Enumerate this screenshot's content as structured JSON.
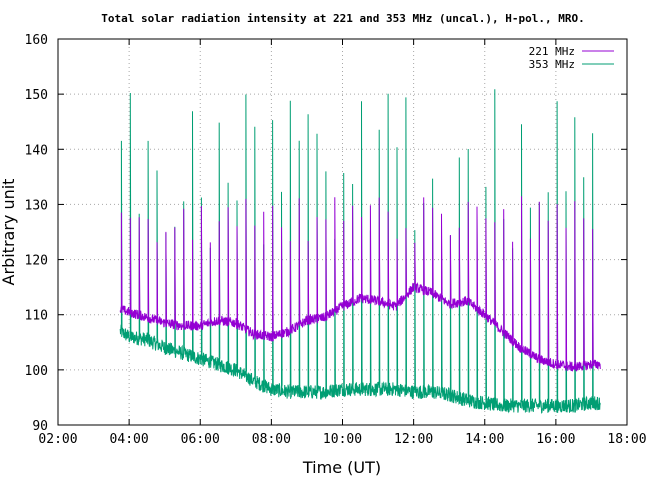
{
  "chart_data": {
    "type": "line",
    "title": "Total solar radiation intensity at 221 and 353 MHz (uncal.), H-pol., MRO.",
    "xlabel": "Time (UT)",
    "ylabel": "Arbitrary unit",
    "x_ticks": [
      "02:00",
      "04:00",
      "06:00",
      "08:00",
      "10:00",
      "12:00",
      "14:00",
      "16:00",
      "18:00"
    ],
    "y_ticks": [
      90,
      100,
      110,
      120,
      130,
      140,
      150,
      160
    ],
    "xlim": [
      "02:00",
      "18:00"
    ],
    "ylim": [
      90,
      160
    ],
    "grid": true,
    "legend_position": "top-right",
    "calibration_spikes": {
      "start": "03:47",
      "interval_minutes": 15,
      "count": 54
    },
    "series": [
      {
        "name": "221 MHz",
        "color": "#9400d3",
        "spike_peak_range": [
          123,
          131.5
        ],
        "x": [
          "03:45",
          "04:00",
          "04:30",
          "05:00",
          "05:30",
          "06:00",
          "06:30",
          "07:00",
          "07:30",
          "08:00",
          "08:30",
          "09:00",
          "09:30",
          "10:00",
          "10:30",
          "11:00",
          "11:30",
          "12:00",
          "12:30",
          "13:00",
          "13:30",
          "14:00",
          "14:30",
          "15:00",
          "15:30",
          "16:00",
          "16:30",
          "17:00",
          "17:15"
        ],
        "values": [
          111,
          110.5,
          109.5,
          108.5,
          108,
          108,
          109,
          108.5,
          106.5,
          106,
          107,
          109,
          109.5,
          111.5,
          113,
          112.5,
          111.5,
          115,
          114,
          112,
          112.5,
          110,
          107,
          104,
          102,
          101,
          100.5,
          101,
          101
        ]
      },
      {
        "name": "353 MHz",
        "color": "#009e73",
        "spike_peak_range": [
          122,
          151
        ],
        "x": [
          "03:45",
          "04:00",
          "04:30",
          "05:00",
          "05:30",
          "06:00",
          "06:30",
          "07:00",
          "07:30",
          "08:00",
          "08:30",
          "09:00",
          "09:30",
          "10:00",
          "10:30",
          "11:00",
          "11:30",
          "12:00",
          "12:30",
          "13:00",
          "13:30",
          "14:00",
          "14:30",
          "15:00",
          "15:30",
          "16:00",
          "16:30",
          "17:00",
          "17:15"
        ],
        "values": [
          107,
          106,
          105.5,
          104,
          103,
          102,
          101,
          100,
          98,
          96.5,
          96,
          96,
          96,
          96.5,
          96.5,
          96.5,
          96.5,
          96,
          96,
          95.5,
          94.5,
          94,
          93.5,
          93.5,
          93.5,
          93.5,
          93.5,
          94,
          94
        ]
      }
    ]
  }
}
